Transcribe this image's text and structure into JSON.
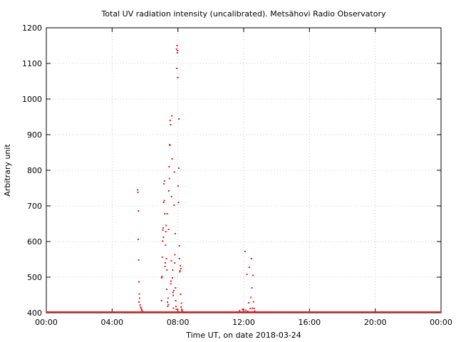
{
  "chart_data": {
    "type": "scatter",
    "title": "Total UV radiation intensity (uncalibrated). Metsähovi Radio Observatory",
    "xlabel": "Time UT, on date 2018-03-24",
    "ylabel": "Arbitrary unit",
    "xlim": [
      "00:00",
      "24:00"
    ],
    "ylim": [
      400,
      1200
    ],
    "grid": true,
    "marker_color": "#e41a1c",
    "x_ticks": [
      "00:00",
      "04:00",
      "08:00",
      "12:00",
      "16:00",
      "20:00",
      "00:00"
    ],
    "y_ticks": [
      400,
      500,
      600,
      700,
      800,
      900,
      1000,
      1100,
      1200
    ],
    "baseline": {
      "y": 402,
      "x_start": "00:00",
      "x_end": "24:00"
    },
    "points": [
      [
        "05:33",
        745
      ],
      [
        "05:34",
        738
      ],
      [
        "05:36",
        686
      ],
      [
        "05:35",
        606
      ],
      [
        "05:37",
        548
      ],
      [
        "05:38",
        487
      ],
      [
        "05:39",
        453
      ],
      [
        "05:40",
        441
      ],
      [
        "05:38",
        430
      ],
      [
        "05:42",
        422
      ],
      [
        "05:44",
        416
      ],
      [
        "05:46",
        412
      ],
      [
        "05:48",
        408
      ],
      [
        "05:50",
        405
      ],
      [
        "07:00",
        434
      ],
      [
        "07:01",
        498
      ],
      [
        "07:02",
        502
      ],
      [
        "07:03",
        556
      ],
      [
        "07:04",
        601
      ],
      [
        "07:05",
        632
      ],
      [
        "07:06",
        638
      ],
      [
        "07:07",
        612
      ],
      [
        "07:08",
        710
      ],
      [
        "07:09",
        762
      ],
      [
        "07:10",
        715
      ],
      [
        "07:11",
        770
      ],
      [
        "07:12",
        678
      ],
      [
        "07:13",
        530
      ],
      [
        "07:14",
        540
      ],
      [
        "07:15",
        590
      ],
      [
        "07:16",
        628
      ],
      [
        "07:17",
        645
      ],
      [
        "07:18",
        552
      ],
      [
        "07:19",
        466
      ],
      [
        "07:20",
        520
      ],
      [
        "07:21",
        678
      ],
      [
        "07:22",
        430
      ],
      [
        "07:23",
        418
      ],
      [
        "07:24",
        441
      ],
      [
        "07:25",
        423
      ],
      [
        "07:26",
        634
      ],
      [
        "07:27",
        742
      ],
      [
        "07:28",
        810
      ],
      [
        "07:29",
        777
      ],
      [
        "07:30",
        872
      ],
      [
        "07:31",
        870
      ],
      [
        "07:32",
        940
      ],
      [
        "07:33",
        928
      ],
      [
        "07:34",
        481
      ],
      [
        "07:35",
        489
      ],
      [
        "07:36",
        546
      ],
      [
        "07:37",
        726
      ],
      [
        "07:38",
        953
      ],
      [
        "07:39",
        832
      ],
      [
        "07:40",
        498
      ],
      [
        "07:41",
        520
      ],
      [
        "07:42",
        457
      ],
      [
        "07:43",
        449
      ],
      [
        "07:44",
        413
      ],
      [
        "07:45",
        462
      ],
      [
        "07:46",
        702
      ],
      [
        "07:47",
        795
      ],
      [
        "07:48",
        540
      ],
      [
        "07:49",
        563
      ],
      [
        "07:50",
        622
      ],
      [
        "07:51",
        470
      ],
      [
        "07:52",
        434
      ],
      [
        "07:53",
        418
      ],
      [
        "07:54",
        410
      ],
      [
        "07:55",
        1140
      ],
      [
        "07:56",
        1086
      ],
      [
        "07:57",
        1150
      ],
      [
        "07:58",
        1130
      ],
      [
        "07:59",
        1136
      ],
      [
        "08:00",
        1060
      ],
      [
        "08:01",
        756
      ],
      [
        "08:02",
        710
      ],
      [
        "08:03",
        806
      ],
      [
        "08:04",
        944
      ],
      [
        "08:05",
        588
      ],
      [
        "08:06",
        552
      ],
      [
        "08:07",
        515
      ],
      [
        "08:08",
        518
      ],
      [
        "08:09",
        532
      ],
      [
        "08:10",
        452
      ],
      [
        "08:11",
        524
      ],
      [
        "08:12",
        416
      ],
      [
        "08:13",
        427
      ],
      [
        "08:14",
        410
      ],
      [
        "08:15",
        407
      ],
      [
        "08:16",
        404
      ],
      [
        "11:45",
        406
      ],
      [
        "11:55",
        409
      ],
      [
        "12:00",
        410
      ],
      [
        "12:05",
        572
      ],
      [
        "12:08",
        407
      ],
      [
        "12:12",
        508
      ],
      [
        "12:15",
        404
      ],
      [
        "12:18",
        428
      ],
      [
        "12:20",
        528
      ],
      [
        "12:24",
        412
      ],
      [
        "12:26",
        443
      ],
      [
        "12:28",
        552
      ],
      [
        "12:30",
        470
      ],
      [
        "12:32",
        413
      ],
      [
        "12:34",
        505
      ],
      [
        "12:36",
        431
      ],
      [
        "12:38",
        412
      ],
      [
        "12:40",
        405
      ]
    ]
  }
}
